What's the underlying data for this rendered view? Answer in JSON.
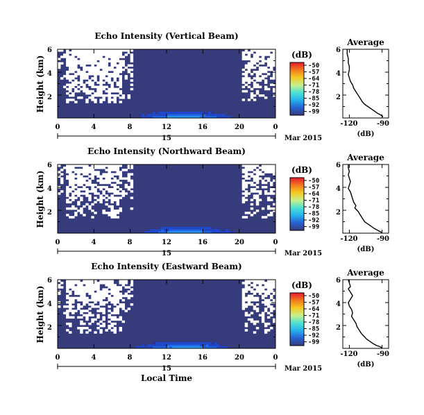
{
  "chart_data": [
    {
      "type": "heatmap",
      "title": "Echo Intensity (Vertical Beam)",
      "ylabel": "Height (km)",
      "y_ticks": [
        "6",
        "4",
        "2"
      ],
      "x_ticks": [
        "0",
        "4",
        "8",
        "12",
        "16",
        "20",
        "0"
      ],
      "date_label": "15",
      "month_label": "Mar 2015",
      "xlim": [
        0,
        24
      ],
      "ylim": [
        0,
        6
      ],
      "colorbar": {
        "unit": "(dB)",
        "ticks": [
          "-50",
          "-57",
          "-64",
          "-71",
          "-78",
          "-85",
          "-92",
          "-99"
        ]
      },
      "average": {
        "title": "Average",
        "xlabel": "(dB)",
        "x_ticks": [
          "-120",
          "-90"
        ],
        "y_ticks": [
          "6",
          "4",
          "2"
        ],
        "xlim": [
          -126,
          -84
        ],
        "ylim": [
          0,
          6
        ],
        "x": [
          -122,
          -122,
          -121,
          -121,
          -120,
          -120,
          -121,
          -120,
          -119,
          -117,
          -116,
          -114,
          -112,
          -110,
          -108,
          -106,
          -103,
          -100,
          -97,
          -94,
          -91,
          -89
        ],
        "y": [
          6.0,
          5.6,
          5.2,
          4.8,
          4.5,
          4.2,
          3.8,
          3.5,
          3.2,
          2.9,
          2.6,
          2.3,
          2.0,
          1.7,
          1.4,
          1.2,
          1.0,
          0.8,
          0.6,
          0.4,
          0.25,
          0.1
        ]
      }
    },
    {
      "type": "heatmap",
      "title": "Echo Intensity (Northward Beam)",
      "ylabel": "Height (km)",
      "y_ticks": [
        "6",
        "4",
        "2"
      ],
      "x_ticks": [
        "0",
        "4",
        "8",
        "12",
        "16",
        "20",
        "0"
      ],
      "date_label": "15",
      "month_label": "Mar 2015",
      "xlim": [
        0,
        24
      ],
      "ylim": [
        0,
        6
      ],
      "colorbar": {
        "unit": "(dB)",
        "ticks": [
          "-50",
          "-57",
          "-64",
          "-71",
          "-78",
          "-85",
          "-92",
          "-99"
        ]
      },
      "average": {
        "title": "Average",
        "xlabel": "(dB)",
        "x_ticks": [
          "-120",
          "-90"
        ],
        "y_ticks": [
          "6",
          "4",
          "2"
        ],
        "xlim": [
          -126,
          -84
        ],
        "ylim": [
          0,
          6
        ],
        "x": [
          -121,
          -121,
          -120,
          -121,
          -120,
          -119,
          -120,
          -121,
          -119,
          -118,
          -117,
          -116,
          -114,
          -115,
          -112,
          -110,
          -108,
          -106,
          -103,
          -100,
          -97,
          -94,
          -92,
          -90
        ],
        "y": [
          6.0,
          5.7,
          5.4,
          5.1,
          4.8,
          4.5,
          4.2,
          3.9,
          3.6,
          3.3,
          3.0,
          2.7,
          2.4,
          2.2,
          1.9,
          1.6,
          1.3,
          1.0,
          0.8,
          0.6,
          0.4,
          0.25,
          0.15,
          0.05
        ]
      }
    },
    {
      "type": "heatmap",
      "title": "Echo Intensity (Eastward Beam)",
      "ylabel": "Height (km)",
      "y_ticks": [
        "6",
        "4",
        "2"
      ],
      "x_ticks": [
        "0",
        "4",
        "8",
        "12",
        "16",
        "20",
        "0"
      ],
      "date_label": "15",
      "month_label": "Mar 2015",
      "xlabel": "Local Time",
      "xlim": [
        0,
        24
      ],
      "ylim": [
        0,
        6
      ],
      "colorbar": {
        "unit": "(dB)",
        "ticks": [
          "-50",
          "-57",
          "-64",
          "-71",
          "-78",
          "-85",
          "-92",
          "-99"
        ]
      },
      "average": {
        "title": "Average",
        "xlabel": "(dB)",
        "x_ticks": [
          "-120",
          "-90"
        ],
        "y_ticks": [
          "6",
          "4",
          "2"
        ],
        "xlim": [
          -126,
          -84
        ],
        "ylim": [
          0,
          6
        ],
        "x": [
          -121,
          -120,
          -119,
          -121,
          -119,
          -117,
          -119,
          -121,
          -120,
          -118,
          -117,
          -118,
          -116,
          -114,
          -113,
          -111,
          -109,
          -106,
          -104,
          -101,
          -98,
          -95,
          -92,
          -90
        ],
        "y": [
          6.0,
          5.7,
          5.4,
          5.2,
          4.9,
          4.6,
          4.3,
          4.0,
          3.7,
          3.4,
          3.1,
          2.8,
          2.5,
          2.2,
          1.9,
          1.6,
          1.3,
          1.0,
          0.8,
          0.6,
          0.4,
          0.25,
          0.15,
          0.05
        ]
      }
    }
  ],
  "colors": {
    "background_echo": "#363b7c",
    "no_data": "#ffffff",
    "near_ground_scale": [
      "#2c3594",
      "#1f47c8",
      "#1e6ae8",
      "#2e9cf4"
    ],
    "colorbar_scale": [
      "#e6192e",
      "#f2781f",
      "#f5c81e",
      "#c8f08c",
      "#4fe2d2",
      "#25b4ec",
      "#2765d6",
      "#363b7c"
    ]
  }
}
